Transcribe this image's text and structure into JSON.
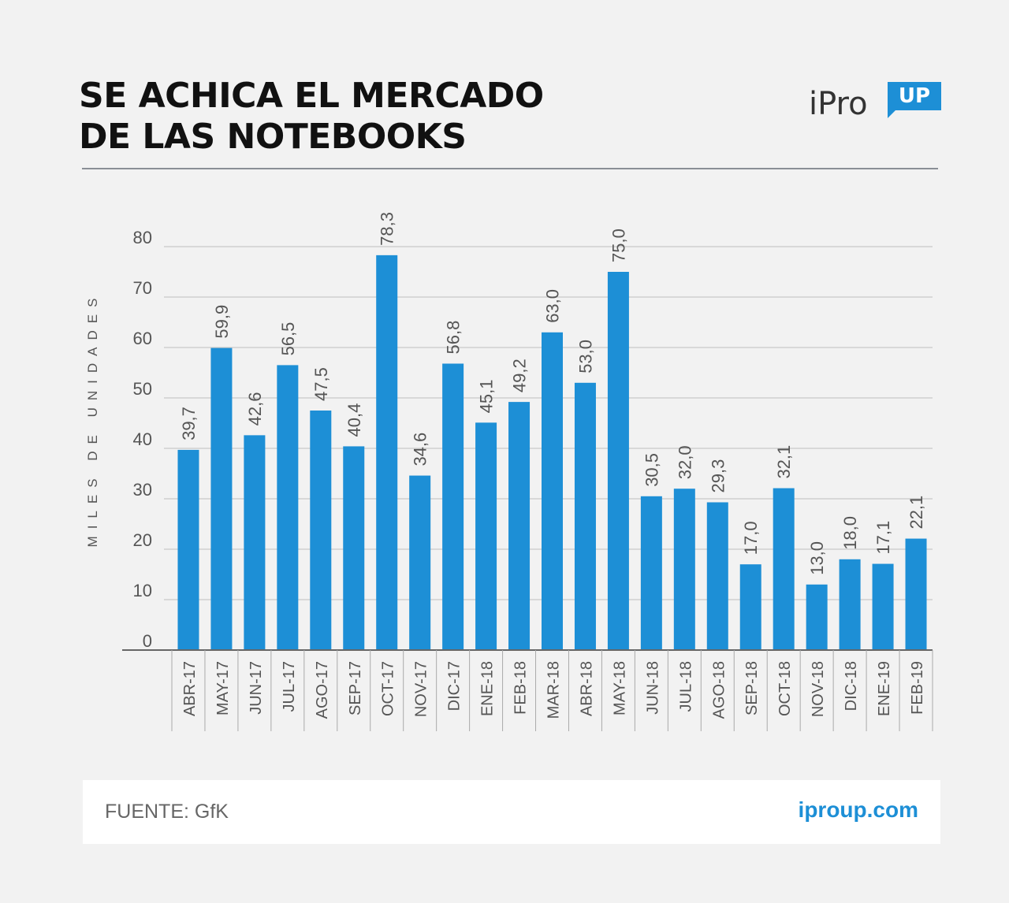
{
  "header": {
    "title_line1": "SE ACHICA EL MERCADO",
    "title_line2": "DE LAS NOTEBOOKS"
  },
  "logo": {
    "text": "iPro",
    "badge": "UP"
  },
  "footer": {
    "source": "FUENTE: GfK",
    "site": "iproup.com"
  },
  "colors": {
    "bar": "#1d8fd6",
    "grid": "#bfbfbf",
    "text": "#555555",
    "accent": "#1d8fd6"
  },
  "chart_data": {
    "type": "bar",
    "ylabel": "MILES DE UNIDADES",
    "ylim": [
      0,
      80
    ],
    "yticks": [
      0,
      10,
      20,
      30,
      40,
      50,
      60,
      70,
      80
    ],
    "grid": true,
    "categories": [
      "ABR-17",
      "MAY-17",
      "JUN-17",
      "JUL-17",
      "AGO-17",
      "SEP-17",
      "OCT-17",
      "NOV-17",
      "DIC-17",
      "ENE-18",
      "FEB-18",
      "MAR-18",
      "ABR-18",
      "MAY-18",
      "JUN-18",
      "JUL-18",
      "AGO-18",
      "SEP-18",
      "OCT-18",
      "NOV-18",
      "DIC-18",
      "ENE-19",
      "FEB-19"
    ],
    "values": [
      39.7,
      59.9,
      42.6,
      56.5,
      47.5,
      40.4,
      78.3,
      34.6,
      56.8,
      45.1,
      49.2,
      63.0,
      53.0,
      75.0,
      30.5,
      32.0,
      29.3,
      17.0,
      32.1,
      13.0,
      18.0,
      17.1,
      22.1
    ],
    "data_labels": [
      "39,7",
      "59,9",
      "42,6",
      "56,5",
      "47,5",
      "40,4",
      "78,3",
      "34,6",
      "56,8",
      "45,1",
      "49,2",
      "63,0",
      "53,0",
      "75,0",
      "30,5",
      "32,0",
      "29,3",
      "17,0",
      "32,1",
      "13,0",
      "18,0",
      "17,1",
      "22,1"
    ]
  }
}
